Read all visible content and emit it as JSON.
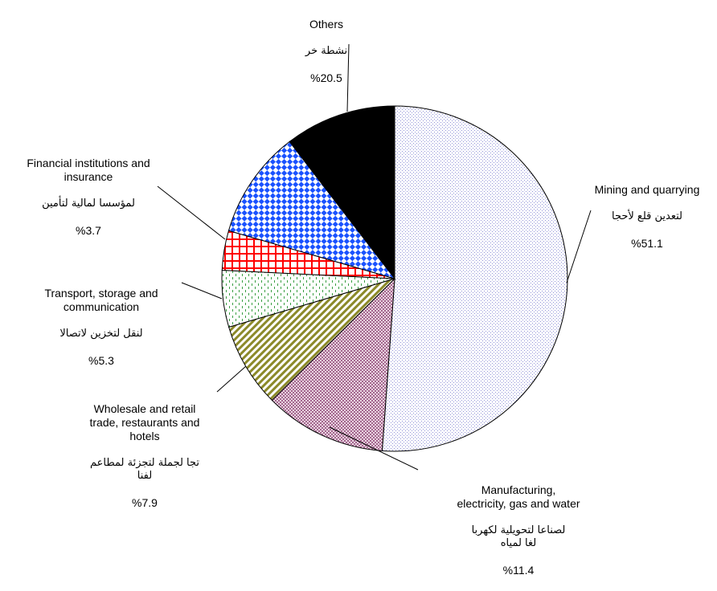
{
  "chart_data": {
    "type": "pie",
    "title": "",
    "legend": "none",
    "slices": [
      {
        "label_en": "Mining and quarrying",
        "label_ar": "لتعدين قلع لأحجا",
        "percent_label": "%51.1",
        "value": 51.1,
        "color": "#8e8fd6",
        "pattern": "dots"
      },
      {
        "label_en": "Manufacturing,\nelectricity, gas and water",
        "label_ar": "لصناعا لتحويلية لكهربا\nلغا لمياه",
        "percent_label": "%11.4",
        "value": 11.4,
        "color": "#a3668e",
        "pattern": "checker"
      },
      {
        "label_en": "Wholesale and retail\ntrade, restaurants and\nhotels",
        "label_ar": "تجا لجملة لتجزئة لمطاعم\nلفنا",
        "percent_label": "%7.9",
        "value": 7.9,
        "color": "#8c8a2a",
        "pattern": "diagonal"
      },
      {
        "label_en": "Transport, storage and\ncommunication",
        "label_ar": "لنقل لتخزين لاتصالا",
        "percent_label": "%5.3",
        "value": 5.3,
        "color": "#3aa043",
        "pattern": "dashes"
      },
      {
        "label_en": "Financial institutions and\ninsurance",
        "label_ar": "لمؤسسا لمالية لتأمين",
        "percent_label": "%3.7",
        "value": 3.7,
        "color": "#ff0000",
        "pattern": "grid"
      },
      {
        "label_en": "",
        "label_ar": "",
        "percent_label": "",
        "value": 10.1,
        "color": "#1a52ff",
        "pattern": "diamond"
      },
      {
        "label_en": "Others",
        "label_ar": "نشطة خر",
        "percent_label": "%20.5",
        "value": 10.4,
        "color": "#000000",
        "pattern": "solid"
      }
    ]
  }
}
